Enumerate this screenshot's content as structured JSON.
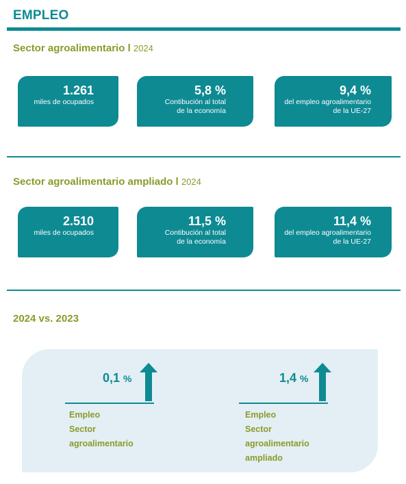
{
  "title": "EMPLEO",
  "sector1": {
    "heading": "Sector agroalimentario l",
    "year": "2024",
    "cards": [
      {
        "value": "1.261",
        "line1": "miles de ocupados",
        "line2": ""
      },
      {
        "value": "5,8 %",
        "line1": "Contibución al total",
        "line2": "de la economía"
      },
      {
        "value": "9,4 %",
        "line1": "del empleo agroalimentario",
        "line2": "de la UE-27"
      }
    ]
  },
  "sector2": {
    "heading": "Sector agroalimentario ampliado l",
    "year": "2024",
    "cards": [
      {
        "value": "2.510",
        "line1": "miles de ocupados",
        "line2": ""
      },
      {
        "value": "11,5 %",
        "line1": "Contibución al total",
        "line2": "de la economía"
      },
      {
        "value": "11,4 %",
        "line1": "del empleo agroalimentario",
        "line2": "de la UE-27"
      }
    ]
  },
  "comparison": {
    "heading": "2024 vs. 2023",
    "items": [
      {
        "value": "0,1",
        "unit": "%",
        "label_lines": [
          "Empleo",
          "Sector",
          "agroalimentario"
        ],
        "arrow": "up-arrow-icon"
      },
      {
        "value": "1,4",
        "unit": "%",
        "label_lines": [
          "Empleo",
          "Sector",
          "agroalimentario",
          "ampliado"
        ],
        "arrow": "up-arrow-icon"
      }
    ]
  },
  "colors": {
    "teal": "#0e8a93",
    "olive": "#8c9a2a",
    "panel": "#e3eff4"
  }
}
